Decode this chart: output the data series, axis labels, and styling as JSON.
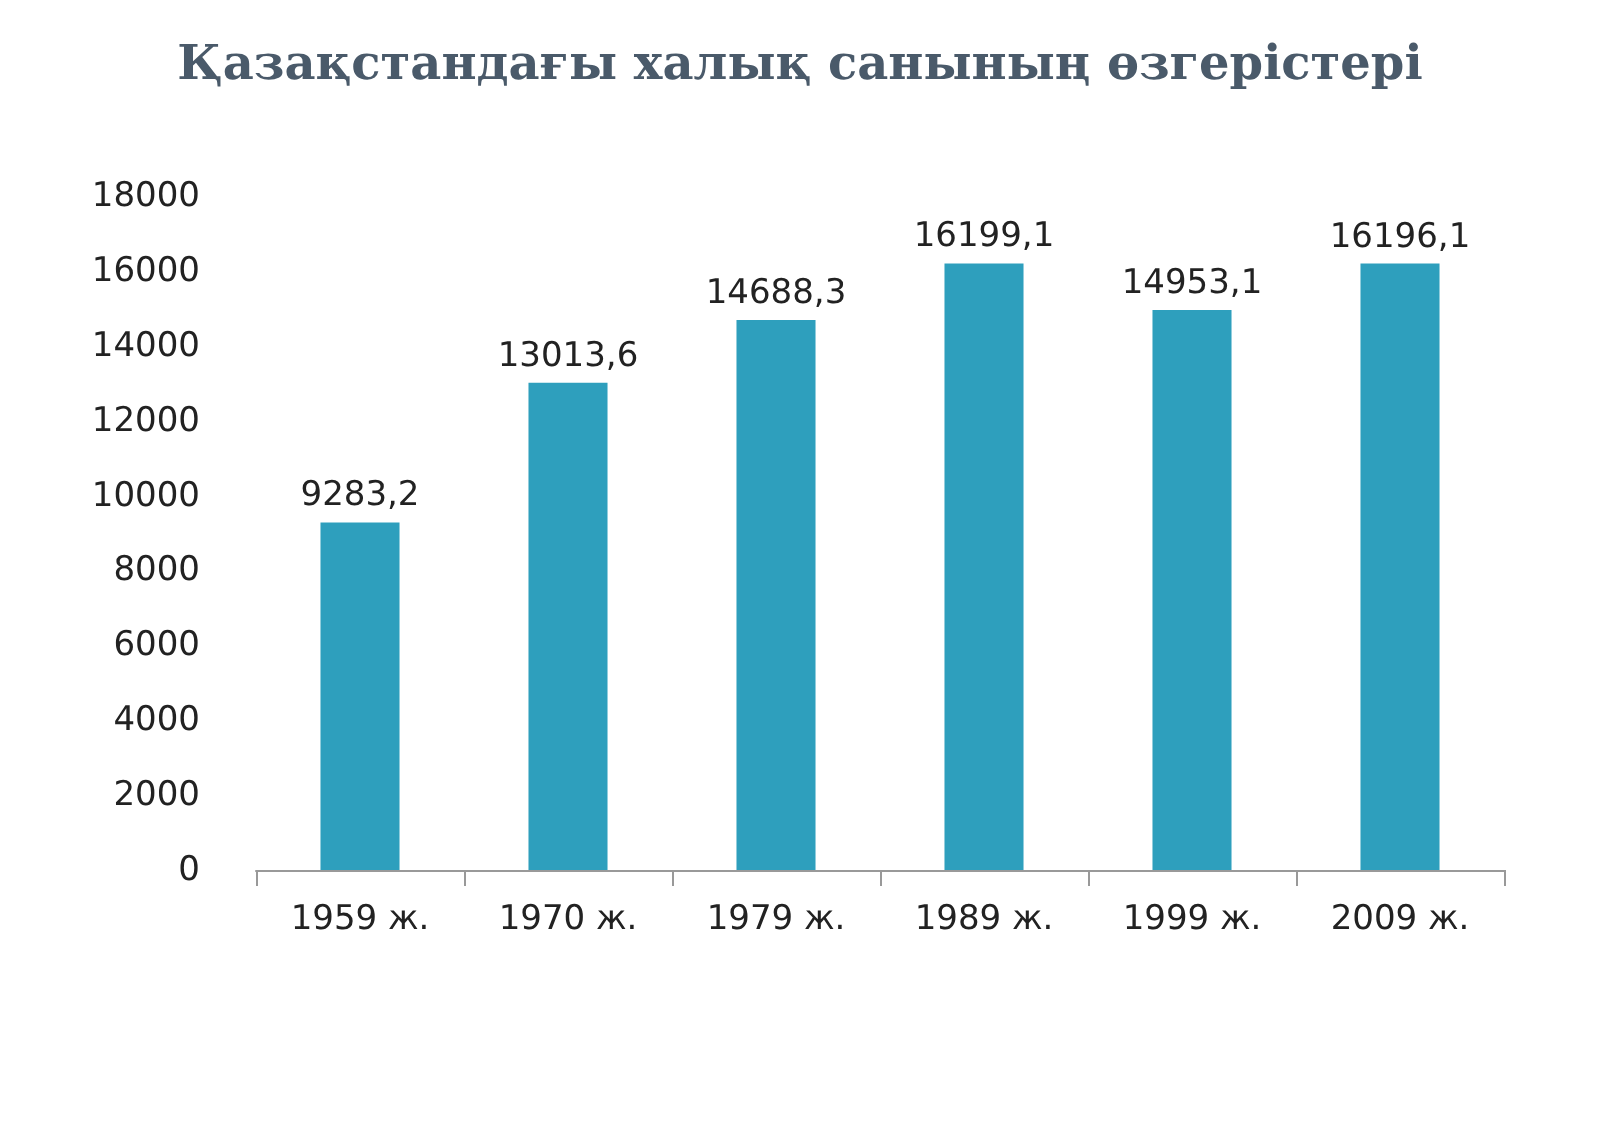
{
  "chart_data": {
    "type": "bar",
    "title": "Қазақстандағы халық санының өзгерістері",
    "categories": [
      "1959 ж.",
      "1970 ж.",
      "1979 ж.",
      "1989 ж.",
      "1999 ж.",
      "2009 ж."
    ],
    "values": [
      9283.2,
      13013.6,
      14688.3,
      16199.1,
      14953.1,
      16196.1
    ],
    "value_labels": [
      "9283,2",
      "13013,6",
      "14688,3",
      "16199,1",
      "14953,1",
      "16196,1"
    ],
    "color": "#2e9fbd",
    "ylim": [
      0,
      18000
    ],
    "yticks": [
      0,
      2000,
      4000,
      6000,
      8000,
      10000,
      12000,
      14000,
      16000,
      18000
    ],
    "grid": false
  }
}
